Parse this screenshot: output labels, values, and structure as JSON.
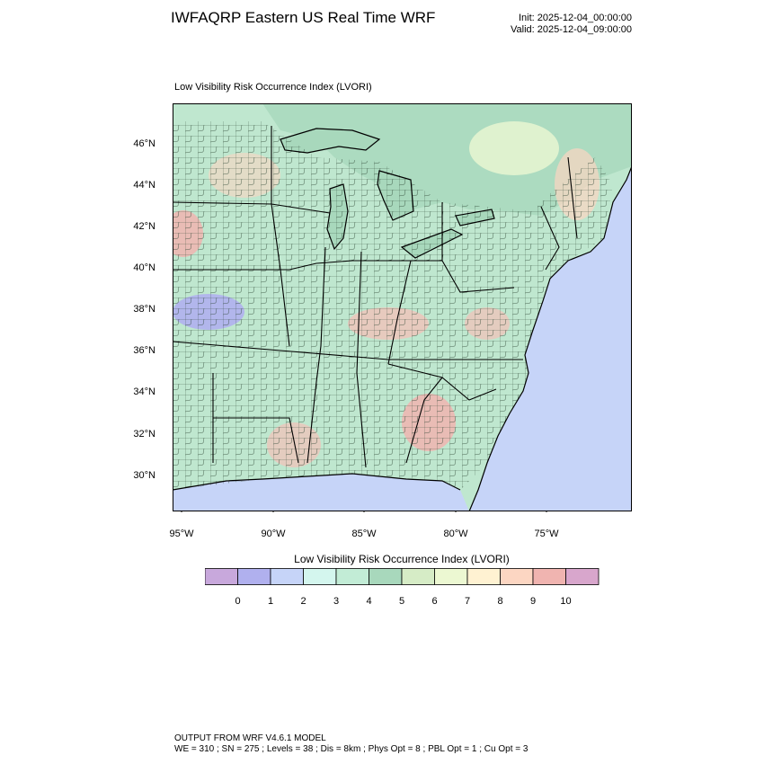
{
  "header": {
    "title": "IWFAQRP Eastern US Real Time WRF",
    "init": "Init: 2025-12-04_00:00:00",
    "valid": "Valid: 2025-12-04_09:00:00"
  },
  "plot": {
    "label": "Low Visibility Risk Occurrence Index   (LVORI)"
  },
  "axes": {
    "lat_labels": [
      "46°N",
      "44°N",
      "42°N",
      "40°N",
      "38°N",
      "36°N",
      "34°N",
      "32°N",
      "30°N"
    ],
    "lon_labels": [
      "95°W",
      "90°W",
      "85°W",
      "80°W",
      "75°W"
    ]
  },
  "colorbar": {
    "title": "Low Visibility Risk Occurrence Index  (LVORI)",
    "ticks": [
      "0",
      "1",
      "2",
      "3",
      "4",
      "5",
      "6",
      "7",
      "8",
      "9",
      "10"
    ],
    "colors": [
      "#c8a8dc",
      "#b0b0ee",
      "#c6d4f8",
      "#d4f6ee",
      "#c2ecd6",
      "#a8d8bc",
      "#d6ecc6",
      "#ecf8d2",
      "#fff2d2",
      "#fcd6c2",
      "#f0b4b0",
      "#d8a6cc"
    ]
  },
  "map_colors": {
    "land": "#bfe7cf",
    "land_dark": "#a8d8bc",
    "water": "#c6d4f8",
    "canada": "#a8d8bc",
    "high_risk": "#f4c0b8",
    "low_risk": "#b0b0ee"
  },
  "footer": {
    "line1": "OUTPUT FROM WRF V4.6.1 MODEL",
    "line2": "WE = 310 ; SN = 275 ; Levels = 38 ; Dis = 8km ; Phys Opt = 8 ; PBL Opt = 1 ; Cu Opt = 3"
  }
}
